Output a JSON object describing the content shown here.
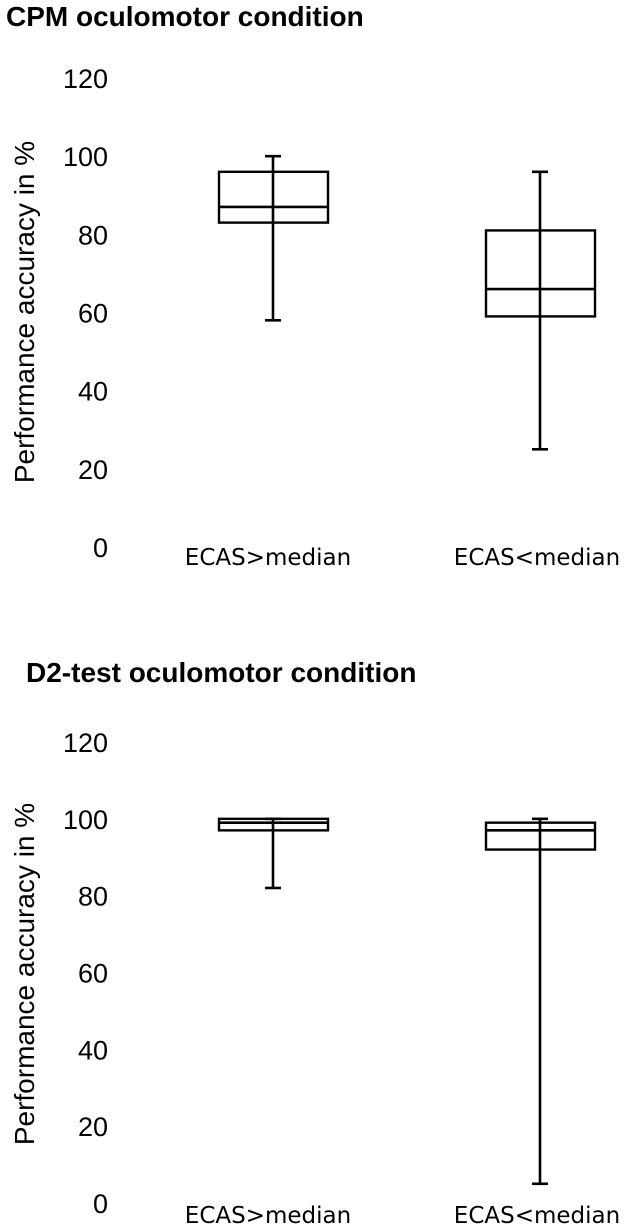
{
  "chart_data": [
    {
      "type": "boxplot",
      "title": "CPM oculomotor condition",
      "ylabel": "Performance accuracy in %",
      "ylim": [
        0,
        120
      ],
      "yticks": [
        0,
        20,
        40,
        60,
        80,
        100,
        120
      ],
      "categories": [
        "ECAS>median",
        "ECAS<median"
      ],
      "boxes": [
        {
          "category": "ECAS>median",
          "min": 58,
          "q1": 83,
          "median": 87,
          "q3": 96,
          "max": 100
        },
        {
          "category": "ECAS<median",
          "min": 25,
          "q1": 59,
          "median": 66,
          "q3": 81,
          "max": 96
        }
      ]
    },
    {
      "type": "boxplot",
      "title": "D2-test oculomotor condition",
      "ylabel": "Performance accuracy in %",
      "ylim": [
        0,
        120
      ],
      "yticks": [
        0,
        20,
        40,
        60,
        80,
        100,
        120
      ],
      "categories": [
        "ECAS>median",
        "ECAS<median"
      ],
      "boxes": [
        {
          "category": "ECAS>median",
          "min": 82,
          "q1": 97,
          "median": 99,
          "q3": 100,
          "max": 100
        },
        {
          "category": "ECAS<median",
          "min": 5,
          "q1": 92,
          "median": 97,
          "q3": 99,
          "max": 100
        }
      ]
    }
  ]
}
